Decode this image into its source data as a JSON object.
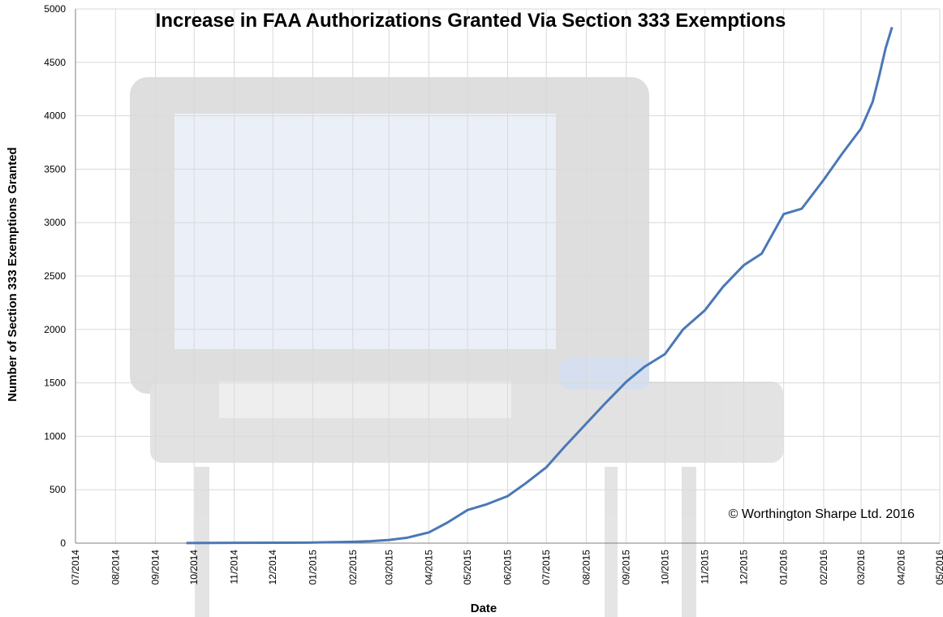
{
  "chart_data": {
    "type": "line",
    "title": "Increase in FAA Authorizations Granted Via Section 333 Exemptions",
    "xlabel": "Date",
    "ylabel": "Number of Section 333 Exemptions Granted",
    "copyright": "© Worthington Sharpe Ltd. 2016",
    "x_tick_labels": [
      "07/2014",
      "08/2014",
      "09/2014",
      "10/2014",
      "11/2014",
      "12/2014",
      "01/2015",
      "02/2015",
      "03/2015",
      "04/2015",
      "05/2015",
      "06/2015",
      "07/2015",
      "08/2015",
      "09/2015",
      "10/2015",
      "11/2015",
      "12/2015",
      "01/2016",
      "02/2016",
      "03/2016",
      "04/2016",
      "05/2016"
    ],
    "y_ticks": [
      0,
      500,
      1000,
      1500,
      2000,
      2500,
      3000,
      3500,
      4000,
      4500,
      5000
    ],
    "ylim": [
      0,
      5000
    ],
    "xlim": [
      "2014-07-01",
      "2016-05-01"
    ],
    "grid": true,
    "line_color": "#4a78b6",
    "background_image": "drone-ground-control-station-photo",
    "series": [
      {
        "x": [
          "2014-09-25",
          "2014-10-15",
          "2014-11-01",
          "2014-12-01",
          "2015-01-01",
          "2015-01-15",
          "2015-02-01",
          "2015-02-15",
          "2015-03-01",
          "2015-03-15",
          "2015-04-01",
          "2015-04-15",
          "2015-05-01",
          "2015-05-15",
          "2015-06-01",
          "2015-06-15",
          "2015-07-01",
          "2015-07-15",
          "2015-08-01",
          "2015-08-15",
          "2015-09-01",
          "2015-09-15",
          "2015-10-01",
          "2015-10-15",
          "2015-11-01",
          "2015-11-15",
          "2015-12-01",
          "2015-12-15",
          "2016-01-01",
          "2016-01-15",
          "2016-02-01",
          "2016-02-15",
          "2016-03-01",
          "2016-03-10",
          "2016-03-15",
          "2016-03-20",
          "2016-03-25"
        ],
        "values": [
          1,
          2,
          3,
          4,
          5,
          8,
          12,
          18,
          30,
          50,
          100,
          190,
          310,
          360,
          440,
          560,
          710,
          900,
          1120,
          1300,
          1510,
          1650,
          1770,
          2000,
          2180,
          2400,
          2600,
          2710,
          3080,
          3130,
          3400,
          3640,
          3880,
          4130,
          4370,
          4630,
          4830
        ]
      }
    ]
  }
}
